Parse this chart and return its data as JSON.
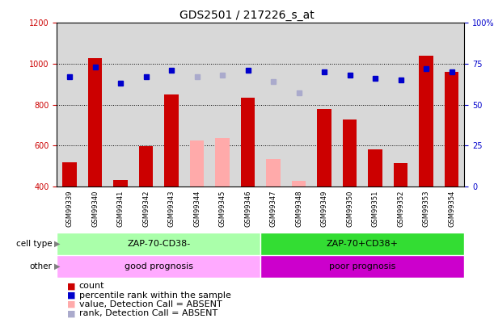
{
  "title": "GDS2501 / 217226_s_at",
  "samples": [
    "GSM99339",
    "GSM99340",
    "GSM99341",
    "GSM99342",
    "GSM99343",
    "GSM99344",
    "GSM99345",
    "GSM99346",
    "GSM99347",
    "GSM99348",
    "GSM99349",
    "GSM99350",
    "GSM99351",
    "GSM99352",
    "GSM99353",
    "GSM99354"
  ],
  "count_present": [
    519,
    1029,
    431,
    596,
    851,
    null,
    null,
    833,
    null,
    null,
    779,
    726,
    581,
    515,
    1040,
    960
  ],
  "count_absent": [
    null,
    null,
    null,
    null,
    null,
    625,
    635,
    null,
    534,
    428,
    null,
    null,
    null,
    null,
    null,
    null
  ],
  "rank_present": [
    67,
    73,
    63,
    67,
    71,
    null,
    null,
    71,
    null,
    null,
    70,
    68,
    66,
    65,
    72,
    70
  ],
  "rank_absent": [
    null,
    null,
    null,
    null,
    null,
    67,
    68,
    null,
    64,
    57,
    null,
    null,
    null,
    null,
    null,
    null
  ],
  "group_split": 8,
  "group1_label": "ZAP-70-CD38-",
  "group2_label": "ZAP-70+CD38+",
  "group1_other": "good prognosis",
  "group2_other": "poor prognosis",
  "group1_cell_color": "#aaffaa",
  "group2_cell_color": "#33dd33",
  "other1_color": "#ffaaff",
  "other2_color": "#cc00cc",
  "ylim_left": [
    400,
    1200
  ],
  "ylim_right": [
    0,
    100
  ],
  "yticks_left": [
    400,
    600,
    800,
    1000,
    1200
  ],
  "yticks_right": [
    0,
    25,
    50,
    75,
    100
  ],
  "bar_color_red": "#cc0000",
  "bar_color_pink": "#ffaaaa",
  "dot_color_blue": "#0000cc",
  "dot_color_lightblue": "#aaaacc",
  "bg_color": "#d8d8d8",
  "title_fontsize": 10,
  "tick_fontsize": 7,
  "legend_fontsize": 8
}
